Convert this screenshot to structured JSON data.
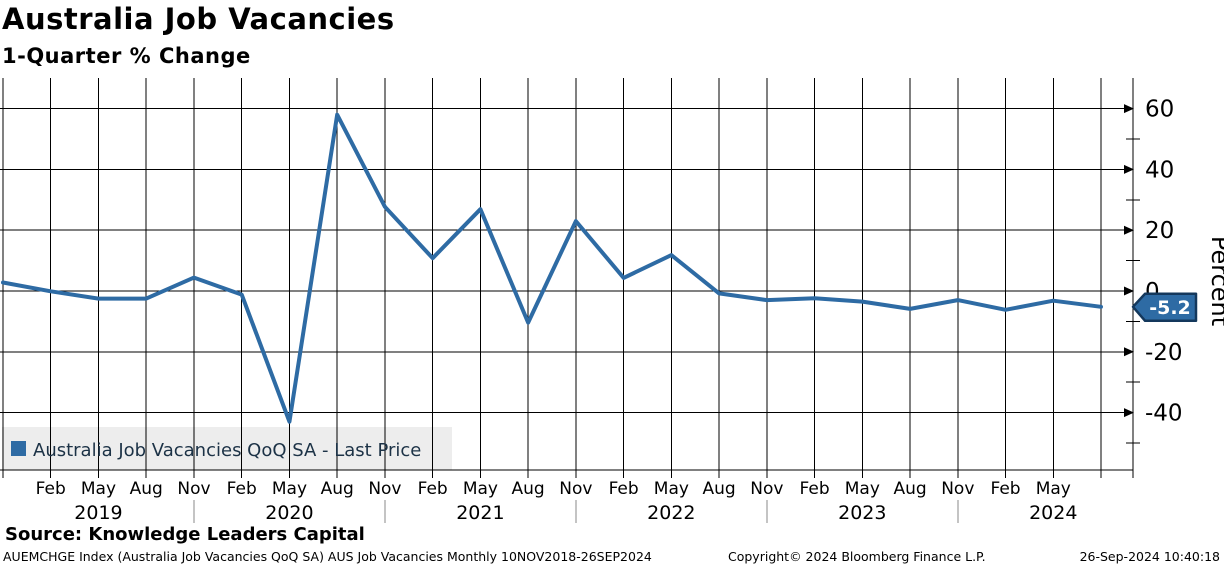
{
  "header": {
    "title": "Australia Job Vacancies",
    "subtitle": "1-Quarter % Change"
  },
  "legend": {
    "label": "Australia Job Vacancies QoQ SA - Last Price"
  },
  "y_axis": {
    "label": "Percent",
    "major_ticks": [
      60,
      40,
      20,
      0,
      -20,
      -40
    ],
    "minor_ticks": [
      50,
      30,
      10,
      -10,
      -30,
      -50
    ]
  },
  "x_axis": {
    "month_labels": [
      "Feb",
      "May",
      "Aug",
      "Nov",
      "Feb",
      "May",
      "Aug",
      "Nov",
      "Feb",
      "May",
      "Aug",
      "Nov",
      "Feb",
      "May",
      "Aug",
      "Nov",
      "Feb",
      "May",
      "Aug",
      "Nov",
      "Feb",
      "May"
    ],
    "year_labels": [
      "2019",
      "2020",
      "2021",
      "2022",
      "2023",
      "2024"
    ]
  },
  "last_price_badge": "-5.2",
  "source_line": "Source: Knowledge Leaders Capital",
  "footer": {
    "left": "AUEMCHGE Index (Australia Job Vacancies QoQ SA) AUS Job Vacancies  Monthly 10NOV2018-26SEP2024",
    "center": "Copyright© 2024 Bloomberg Finance L.P.",
    "right": "26-Sep-2024 10:40:18"
  },
  "colors": {
    "series_blue": "#2e6ba4",
    "badge_fill": "#2e6ba4",
    "badge_border": "#14385c",
    "badge_text": "#ffffff",
    "grid": "#000000",
    "legend_bg": "#ededed",
    "legend_text": "#1c3246",
    "year_divider": "#8a8a8a",
    "text": "#000000"
  },
  "chart_data": {
    "type": "line",
    "title": "Australia Job Vacancies",
    "subtitle": "1-Quarter % Change",
    "ylabel": "Percent",
    "ylim": [
      -59,
      68
    ],
    "grid": true,
    "legend_position": "bottom-left",
    "x": [
      "Nov 2018",
      "Feb 2019",
      "May 2019",
      "Aug 2019",
      "Nov 2019",
      "Feb 2020",
      "May 2020",
      "Aug 2020",
      "Nov 2020",
      "Feb 2021",
      "May 2021",
      "Aug 2021",
      "Nov 2021",
      "Feb 2022",
      "May 2022",
      "Aug 2022",
      "Nov 2022",
      "Feb 2023",
      "May 2023",
      "Aug 2023",
      "Nov 2023",
      "Feb 2024",
      "May 2024",
      "Aug 2024"
    ],
    "series": [
      {
        "name": "Australia Job Vacancies QoQ SA - Last Price",
        "color": "#2e6ba4",
        "values": [
          2.8,
          -0.1,
          -2.5,
          -2.5,
          4.4,
          -1.2,
          -43.0,
          58.0,
          27.7,
          10.8,
          26.9,
          -10.4,
          23.0,
          4.3,
          11.8,
          -0.8,
          -3.0,
          -2.4,
          -3.5,
          -5.9,
          -3.0,
          -6.2,
          -3.2,
          -5.2
        ]
      }
    ],
    "last_value": -5.2
  }
}
